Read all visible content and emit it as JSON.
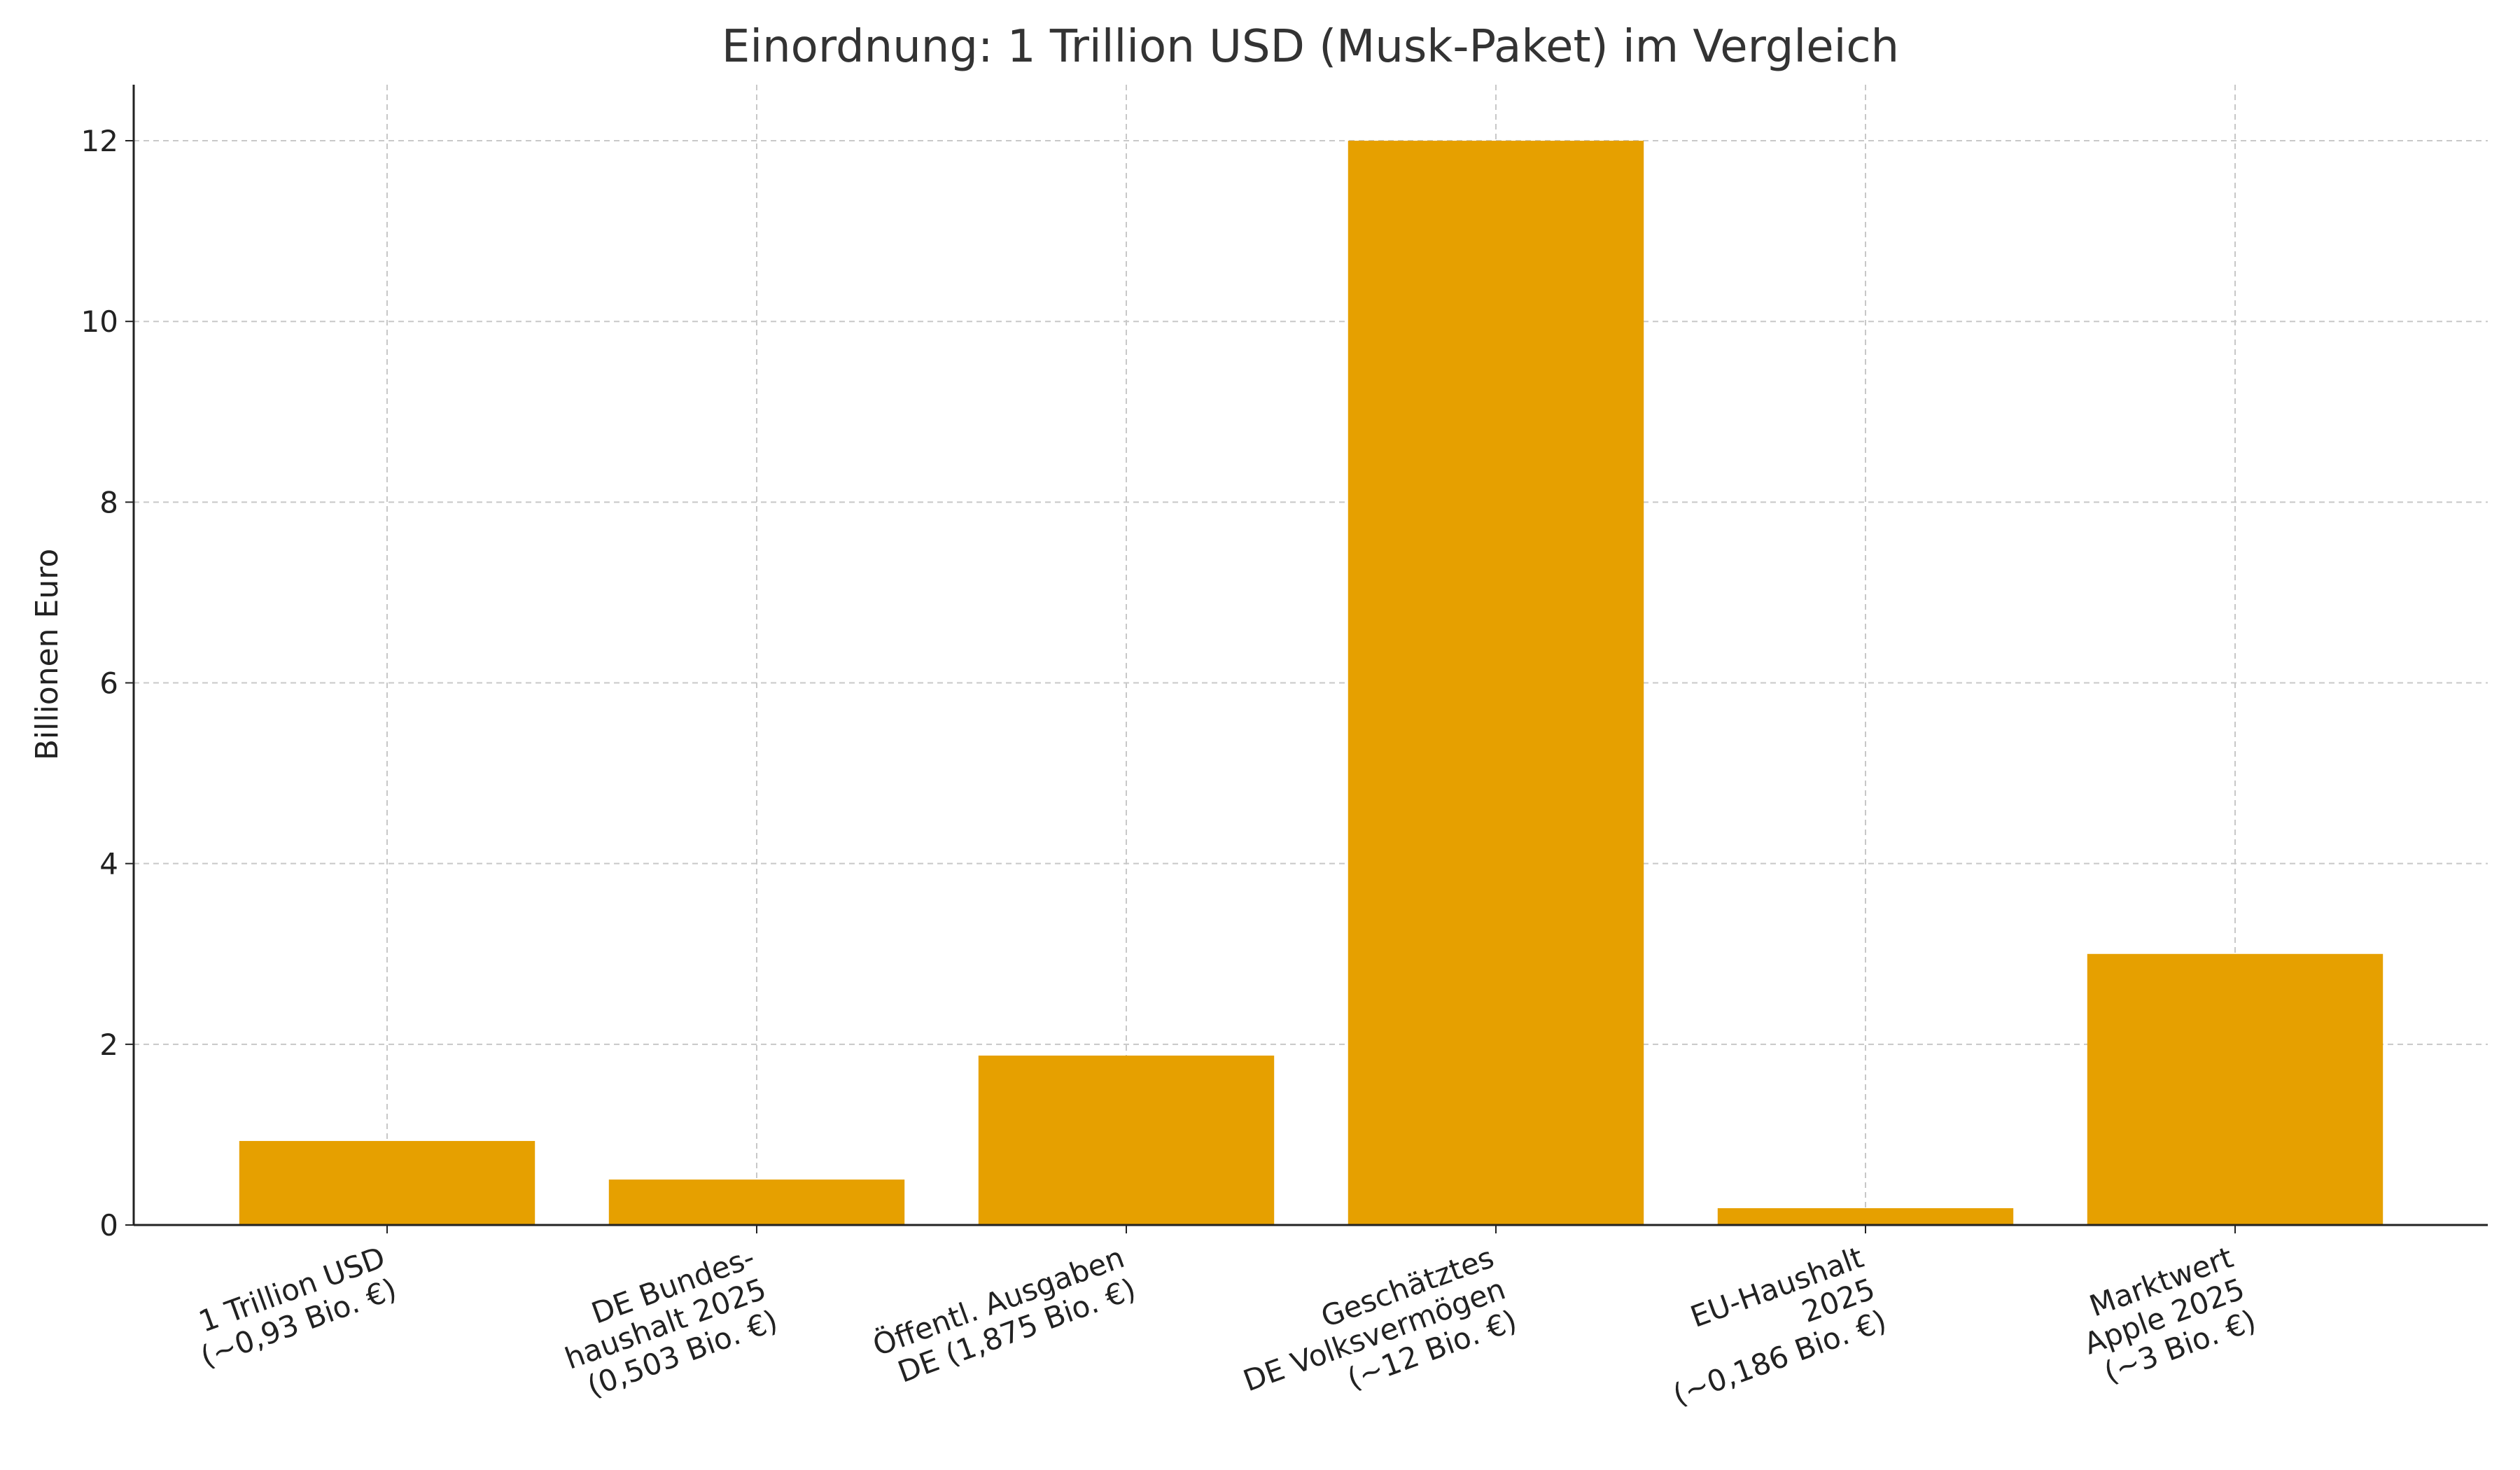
{
  "chart_data": {
    "type": "bar",
    "title": "Einordnung: 1 Trillion USD (Musk-Paket) im Vergleich",
    "y_label": "Billionen Euro",
    "categories": [
      "1 Trillion USD\n(~0,93 Bio. €)",
      "DE Bundes-\nhaushalt 2025\n(0,503 Bio. €)",
      "Öffentl. Ausgaben\nDE (1,875 Bio. €)",
      "Geschätztes\nDE Volksvermögen\n(~12 Bio. €)",
      "EU-Haushalt\n2025\n(~0,186 Bio. €)",
      "Marktwert\nApple 2025\n(~3 Bio. €)"
    ],
    "values": [
      0.93,
      0.503,
      1.875,
      12,
      0.186,
      3
    ],
    "color": "#e6a000",
    "ylim": [
      0,
      12.62
    ],
    "yticks": [
      0,
      2,
      4,
      6,
      8,
      10,
      12
    ],
    "grid": true
  }
}
